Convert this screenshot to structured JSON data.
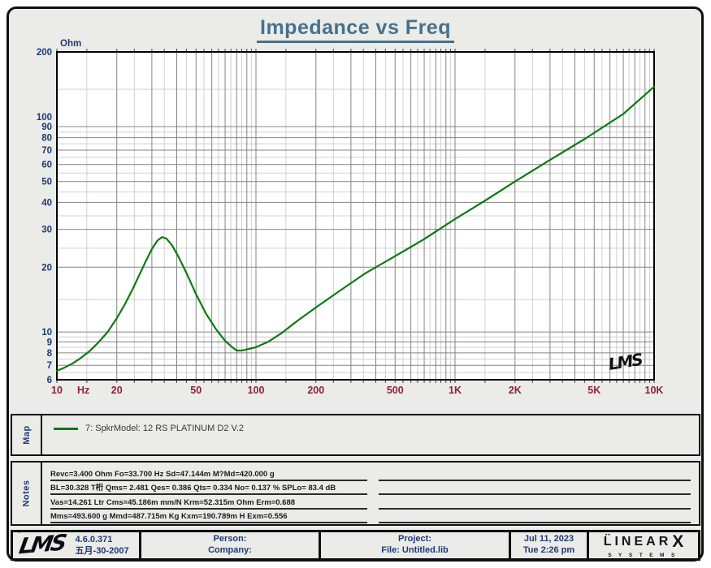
{
  "chart_data": {
    "type": "line",
    "title": "Impedance vs Freq",
    "xlabel_unit": "Hz",
    "ylabel_unit": "Ohm",
    "xscale": "log",
    "yscale": "log",
    "xlim": [
      10,
      10000
    ],
    "ylim": [
      6,
      200
    ],
    "x_ticks": [
      {
        "v": 10,
        "label": "10"
      },
      {
        "v": 20,
        "label": "20"
      },
      {
        "v": 50,
        "label": "50"
      },
      {
        "v": 100,
        "label": "100"
      },
      {
        "v": 200,
        "label": "200"
      },
      {
        "v": 500,
        "label": "500"
      },
      {
        "v": 1000,
        "label": "1K"
      },
      {
        "v": 2000,
        "label": "2K"
      },
      {
        "v": 5000,
        "label": "5K"
      },
      {
        "v": 10000,
        "label": "10K"
      }
    ],
    "y_ticks": [
      200,
      100,
      90,
      80,
      70,
      60,
      50,
      40,
      30,
      20,
      10,
      9,
      8,
      7,
      6
    ],
    "grid": {
      "major_color": "#848484",
      "minor_color": "#d0d0d0",
      "on": true
    },
    "series": [
      {
        "name": "7: SpkrModel: 12 RS PLATINUM D2  V.2",
        "color": "#0d7a12",
        "x": [
          10,
          11,
          12,
          13,
          14.5,
          16,
          18,
          20,
          22,
          24,
          26,
          28,
          30,
          32,
          33.7,
          35.5,
          38,
          41,
          45,
          50,
          56,
          63,
          70,
          76,
          80,
          85,
          90,
          100,
          115,
          135,
          160,
          200,
          260,
          350,
          500,
          700,
          1000,
          1400,
          2000,
          3000,
          4500,
          7000,
          10000
        ],
        "y": [
          6.6,
          6.85,
          7.15,
          7.5,
          8.1,
          8.85,
          10.0,
          11.6,
          13.5,
          15.8,
          18.5,
          21.4,
          24.3,
          26.6,
          27.6,
          27.2,
          25.2,
          22.2,
          18.6,
          15.0,
          12.2,
          10.3,
          9.1,
          8.5,
          8.2,
          8.2,
          8.3,
          8.5,
          9.0,
          9.9,
          11.2,
          13.0,
          15.4,
          18.6,
          22.5,
          27.0,
          33.5,
          40.5,
          50,
          63,
          79,
          103,
          138
        ]
      }
    ],
    "signature": "LMS",
    "legend_position": "map-panel-below-chart"
  },
  "map_panel": {
    "label": "Map",
    "legend_text": "7: SpkrModel: 12 RS PLATINUM D2  V.2"
  },
  "notes_panel": {
    "label": "Notes",
    "lines": [
      "Revc=3.400 Ohm  Fo=33.700 Hz  Sd=47.144m M?Md=420.000 g",
      "BL=30.328 T桁  Qms= 2.481  Qes= 0.386  Qts= 0.334  No= 0.137 %  SPLo= 83.4 dB",
      "Vas=14.261 Ltr  Cms=45.186m mm/N  Krm=52.315m Ohm  Erm=0.688",
      "Mms=493.600 g  Mmd=487.715m Kg  Kxm=190.789m H  Exm=0.556"
    ]
  },
  "footer": {
    "logo_text": "LMS",
    "logo_tm": "™",
    "version": "4.6.0.371",
    "version_date": "五月-30-2007",
    "person_label": "Person:",
    "company_label": "Company:",
    "project_label": "Project:",
    "file_label": "File: Untitled.lib",
    "date": "Jul 11, 2023",
    "time": "Tue  2:26 pm",
    "brand_line1": "L̈INEAR",
    "brand_x": "X",
    "brand_line2": "SYSTEMS"
  },
  "colors": {
    "accent_blue": "#44718f",
    "navy": "#1d3b76",
    "maroon": "#8e2142",
    "curve_green": "#0d7a12",
    "panel_bg": "#ebebe7"
  }
}
